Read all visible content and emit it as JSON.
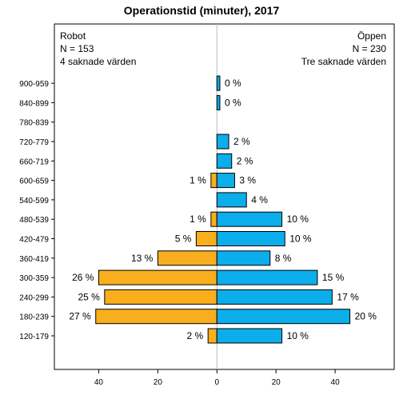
{
  "chart_data": {
    "type": "bar",
    "orientation": "horizontal-diverging",
    "title": "Operationstid (minuter), 2017",
    "categories": [
      "120-179",
      "180-239",
      "240-299",
      "300-359",
      "360-419",
      "420-479",
      "480-539",
      "540-599",
      "600-659",
      "660-719",
      "720-779",
      "780-839",
      "840-899",
      "900-959"
    ],
    "series": [
      {
        "name": "Robot",
        "side": "left",
        "color": "#F9AE1E",
        "values": [
          3,
          41,
          38,
          40,
          20,
          7,
          2,
          0,
          2,
          0,
          0,
          0,
          0,
          0
        ],
        "labels": [
          "2 %",
          "27 %",
          "25 %",
          "26 %",
          "13 %",
          "5 %",
          "1 %",
          "",
          "1 %",
          "",
          "",
          "",
          "",
          ""
        ],
        "info": [
          "Robot",
          "N = 153",
          "4 saknade värden"
        ]
      },
      {
        "name": "Öppen",
        "side": "right",
        "color": "#0CADEB",
        "values": [
          22,
          45,
          39,
          34,
          18,
          23,
          22,
          10,
          6,
          5,
          4,
          0,
          1,
          1
        ],
        "labels": [
          "10 %",
          "20 %",
          "17 %",
          "15 %",
          "8 %",
          "10 %",
          "10 %",
          "4 %",
          "3 %",
          "2 %",
          "2 %",
          "",
          "0 %",
          "0 %"
        ],
        "info": [
          "Öppen",
          "N = 230",
          "Tre saknade värden"
        ]
      }
    ],
    "xlim": [
      -55,
      60
    ],
    "xticks": [
      -40,
      -20,
      0,
      20,
      40
    ],
    "xtick_labels": [
      "40",
      "20",
      "0",
      "20",
      "40"
    ],
    "grid": false
  }
}
